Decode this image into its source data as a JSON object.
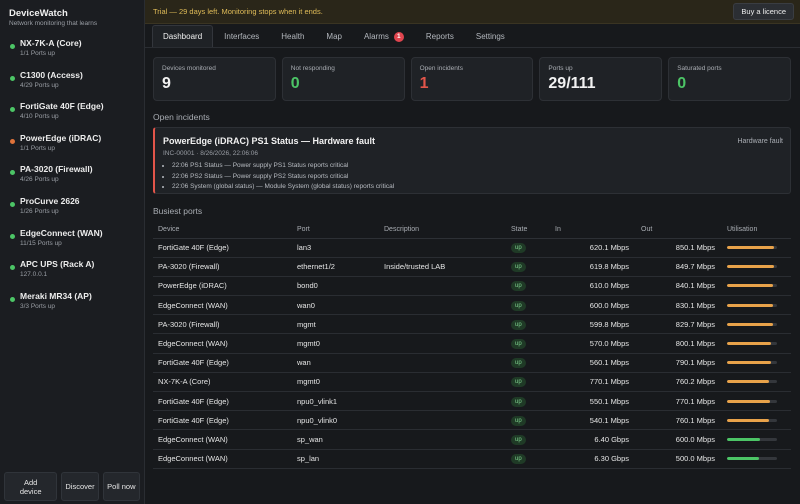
{
  "app": {
    "name": "DeviceWatch",
    "tagline": "Network monitoring that learns"
  },
  "sidebar": {
    "devices": [
      {
        "name": "NX-7K-A (Core)",
        "sub": "1/1 Ports up",
        "status_color": "#4cc566"
      },
      {
        "name": "C1300 (Access)",
        "sub": "4/29 Ports up",
        "status_color": "#4cc566"
      },
      {
        "name": "FortiGate 40F (Edge)",
        "sub": "4/10 Ports up",
        "status_color": "#4cc566"
      },
      {
        "name": "PowerEdge (iDRAC)",
        "sub": "1/1 Ports up",
        "status_color": "#e0733a"
      },
      {
        "name": "PA-3020 (Firewall)",
        "sub": "4/26 Ports up",
        "status_color": "#4cc566"
      },
      {
        "name": "ProCurve 2626",
        "sub": "1/26 Ports up",
        "status_color": "#4cc566"
      },
      {
        "name": "EdgeConnect (WAN)",
        "sub": "11/15 Ports up",
        "status_color": "#4cc566"
      },
      {
        "name": "APC UPS (Rack A)",
        "sub": "127.0.0.1",
        "status_color": "#4cc566"
      },
      {
        "name": "Meraki MR34 (AP)",
        "sub": "3/3 Ports up",
        "status_color": "#4cc566"
      }
    ],
    "actions": {
      "add": "Add device",
      "discover": "Discover",
      "poll": "Poll now"
    }
  },
  "banner": {
    "text": "Trial — 29 days left. Monitoring stops when it ends.",
    "button": "Buy a licence"
  },
  "tabs": [
    {
      "label": "Dashboard"
    },
    {
      "label": "Interfaces"
    },
    {
      "label": "Health"
    },
    {
      "label": "Map"
    },
    {
      "label": "Alarms",
      "badge": "1"
    },
    {
      "label": "Reports"
    },
    {
      "label": "Settings"
    }
  ],
  "stats": [
    {
      "label": "Devices monitored",
      "value": "9",
      "color": "#f2f2f2"
    },
    {
      "label": "Not responding",
      "value": "0",
      "color": "#4cc566"
    },
    {
      "label": "Open incidents",
      "value": "1",
      "color": "#e2554a"
    },
    {
      "label": "Ports up",
      "value": "29/111",
      "color": "#f2f2f2"
    },
    {
      "label": "Saturated ports",
      "value": "0",
      "color": "#4cc566"
    }
  ],
  "incidents": {
    "title": "Open incidents",
    "item": {
      "title": "PowerEdge (iDRAC) PS1 Status — Hardware fault",
      "meta": "INC-00001 · 8/26/2026, 22:06:06",
      "type": "Hardware fault",
      "events": [
        "22:06 PS1 Status — Power supply PS1 Status reports critical",
        "22:06 PS2 Status — Power supply PS2 Status reports critical",
        "22:06 System (global status) — Module System (global status) reports critical"
      ]
    }
  },
  "ports": {
    "title": "Busiest ports",
    "columns": [
      "Device",
      "Port",
      "Description",
      "State",
      "In",
      "Out",
      "Utilisation"
    ],
    "rows": [
      {
        "device": "FortiGate 40F (Edge)",
        "port": "lan3",
        "desc": "",
        "state": "up",
        "in": "620.1 Mbps",
        "out": "850.1 Mbps",
        "util": 0.94,
        "color": "#e8a24a"
      },
      {
        "device": "PA-3020 (Firewall)",
        "port": "ethernet1/2",
        "desc": "Inside/trusted LAB",
        "state": "up",
        "in": "619.8 Mbps",
        "out": "849.7 Mbps",
        "util": 0.94,
        "color": "#e8a24a"
      },
      {
        "device": "PowerEdge (iDRAC)",
        "port": "bond0",
        "desc": "",
        "state": "up",
        "in": "610.0 Mbps",
        "out": "840.1 Mbps",
        "util": 0.92,
        "color": "#e8a24a"
      },
      {
        "device": "EdgeConnect (WAN)",
        "port": "wan0",
        "desc": "",
        "state": "up",
        "in": "600.0 Mbps",
        "out": "830.1 Mbps",
        "util": 0.91,
        "color": "#e8a24a"
      },
      {
        "device": "PA-3020 (Firewall)",
        "port": "mgmt",
        "desc": "",
        "state": "up",
        "in": "599.8 Mbps",
        "out": "829.7 Mbps",
        "util": 0.91,
        "color": "#e8a24a"
      },
      {
        "device": "EdgeConnect (WAN)",
        "port": "mgmt0",
        "desc": "",
        "state": "up",
        "in": "570.0 Mbps",
        "out": "800.1 Mbps",
        "util": 0.88,
        "color": "#e8a24a"
      },
      {
        "device": "FortiGate 40F (Edge)",
        "port": "wan",
        "desc": "",
        "state": "up",
        "in": "560.1 Mbps",
        "out": "790.1 Mbps",
        "util": 0.87,
        "color": "#e8a24a"
      },
      {
        "device": "NX-7K-A (Core)",
        "port": "mgmt0",
        "desc": "",
        "state": "up",
        "in": "770.1 Mbps",
        "out": "760.2 Mbps",
        "util": 0.84,
        "color": "#e8a24a"
      },
      {
        "device": "FortiGate 40F (Edge)",
        "port": "npu0_vlink1",
        "desc": "",
        "state": "up",
        "in": "550.1 Mbps",
        "out": "770.1 Mbps",
        "util": 0.85,
        "color": "#e8a24a"
      },
      {
        "device": "FortiGate 40F (Edge)",
        "port": "npu0_vlink0",
        "desc": "",
        "state": "up",
        "in": "540.1 Mbps",
        "out": "760.1 Mbps",
        "util": 0.84,
        "color": "#e8a24a"
      },
      {
        "device": "EdgeConnect (WAN)",
        "port": "sp_wan",
        "desc": "",
        "state": "up",
        "in": "6.40 Gbps",
        "out": "600.0 Mbps",
        "util": 0.66,
        "color": "#4cc566"
      },
      {
        "device": "EdgeConnect (WAN)",
        "port": "sp_lan",
        "desc": "",
        "state": "up",
        "in": "6.30 Gbps",
        "out": "500.0 Mbps",
        "util": 0.64,
        "color": "#4cc566"
      }
    ]
  }
}
